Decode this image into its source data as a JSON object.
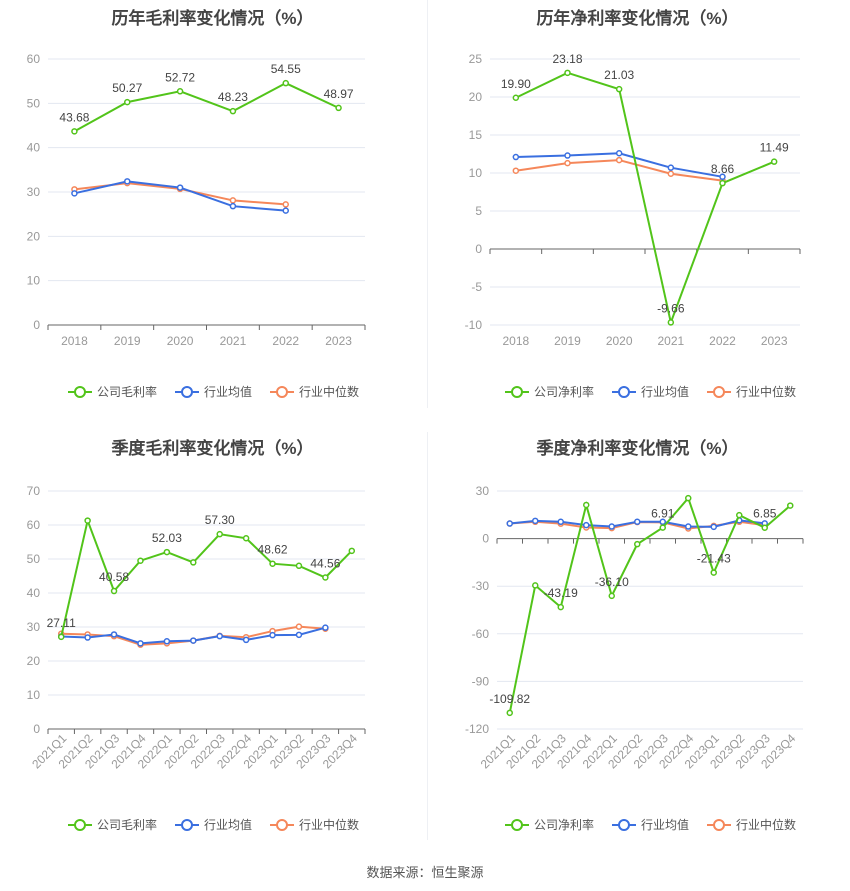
{
  "source": "数据来源：恒生聚源",
  "colors": {
    "company": "#52c41a",
    "industry_avg": "#3a6fe0",
    "industry_median": "#f5875a"
  },
  "chart_data": [
    {
      "type": "line",
      "title": "历年毛利率变化情况（%）",
      "categories": [
        "2018",
        "2019",
        "2020",
        "2021",
        "2022",
        "2023"
      ],
      "ylim": [
        0,
        60
      ],
      "yticks": [
        0,
        10,
        20,
        30,
        40,
        50,
        60
      ],
      "grid": true,
      "legend": "bottom",
      "series": [
        {
          "name": "公司毛利率",
          "values": [
            43.68,
            50.27,
            52.72,
            48.23,
            54.55,
            48.97
          ],
          "labels": [
            "43.68",
            "50.27",
            "52.72",
            "48.23",
            "54.55",
            "48.97"
          ]
        },
        {
          "name": "行业均值",
          "values": [
            29.7,
            32.4,
            31.0,
            26.8,
            25.8,
            null
          ]
        },
        {
          "name": "行业中位数",
          "values": [
            30.6,
            32.0,
            30.7,
            28.1,
            27.2,
            null
          ]
        }
      ]
    },
    {
      "type": "line",
      "title": "历年净利率变化情况（%）",
      "categories": [
        "2018",
        "2019",
        "2020",
        "2021",
        "2022",
        "2023"
      ],
      "ylim": [
        -10,
        25
      ],
      "yticks": [
        -10,
        -5,
        0,
        5,
        10,
        15,
        20,
        25
      ],
      "grid": true,
      "legend": "bottom",
      "series": [
        {
          "name": "公司净利率",
          "values": [
            19.9,
            23.18,
            21.03,
            -9.66,
            8.66,
            11.49
          ],
          "labels": [
            "19.90",
            "23.18",
            "21.03",
            "-9.66",
            "8.66",
            "11.49"
          ]
        },
        {
          "name": "行业均值",
          "values": [
            12.1,
            12.3,
            12.6,
            10.7,
            9.5,
            null
          ]
        },
        {
          "name": "行业中位数",
          "values": [
            10.3,
            11.3,
            11.7,
            9.9,
            9.0,
            null
          ]
        }
      ]
    },
    {
      "type": "line",
      "title": "季度毛利率变化情况（%）",
      "categories": [
        "2021Q1",
        "2021Q2",
        "2021Q3",
        "2021Q4",
        "2022Q1",
        "2022Q2",
        "2022Q3",
        "2022Q4",
        "2023Q1",
        "2023Q2",
        "2023Q3",
        "2023Q4"
      ],
      "ylim": [
        0,
        70
      ],
      "yticks": [
        0,
        10,
        20,
        30,
        40,
        50,
        60,
        70
      ],
      "grid": true,
      "legend": "bottom",
      "series": [
        {
          "name": "公司毛利率",
          "values": [
            27.11,
            61.3,
            40.58,
            49.5,
            52.03,
            49.0,
            57.3,
            56.1,
            48.62,
            48.0,
            44.56,
            52.4
          ],
          "labels": [
            "27.11",
            null,
            "40.58",
            null,
            "52.03",
            null,
            "57.30",
            null,
            "48.62",
            null,
            "44.56",
            null
          ]
        },
        {
          "name": "行业均值",
          "values": [
            27.2,
            26.9,
            27.8,
            25.2,
            25.8,
            26.0,
            27.3,
            26.2,
            27.6,
            27.7,
            29.8,
            null
          ]
        },
        {
          "name": "行业中位数",
          "values": [
            28.0,
            27.8,
            27.3,
            24.8,
            25.2,
            26.0,
            27.4,
            27.0,
            28.8,
            30.1,
            29.5,
            null
          ]
        }
      ]
    },
    {
      "type": "line",
      "title": "季度净利率变化情况（%）",
      "categories": [
        "2021Q1",
        "2021Q2",
        "2021Q3",
        "2021Q4",
        "2022Q1",
        "2022Q2",
        "2022Q3",
        "2022Q4",
        "2023Q1",
        "2023Q2",
        "2023Q3",
        "2023Q4"
      ],
      "ylim": [
        -120,
        30
      ],
      "yticks": [
        -120,
        -90,
        -60,
        -30,
        0,
        30
      ],
      "grid": true,
      "legend": "bottom",
      "series": [
        {
          "name": "公司净利率",
          "values": [
            -109.82,
            -29.5,
            -43.19,
            21.2,
            -36.1,
            -3.5,
            6.91,
            25.5,
            -21.43,
            14.8,
            6.85,
            20.8
          ],
          "labels": [
            "-109.82",
            null,
            "-43.19",
            null,
            "-36.10",
            null,
            "6.91",
            null,
            "-21.43",
            null,
            "6.85",
            null
          ]
        },
        {
          "name": "行业均值",
          "values": [
            9.5,
            11.2,
            10.6,
            8.5,
            7.6,
            10.6,
            10.6,
            7.6,
            7.4,
            11.5,
            9.6,
            null
          ]
        },
        {
          "name": "行业中位数",
          "values": [
            9.5,
            10.6,
            9.4,
            7.0,
            6.6,
            10.4,
            10.2,
            6.4,
            8.0,
            10.6,
            8.4,
            null
          ]
        }
      ]
    }
  ]
}
